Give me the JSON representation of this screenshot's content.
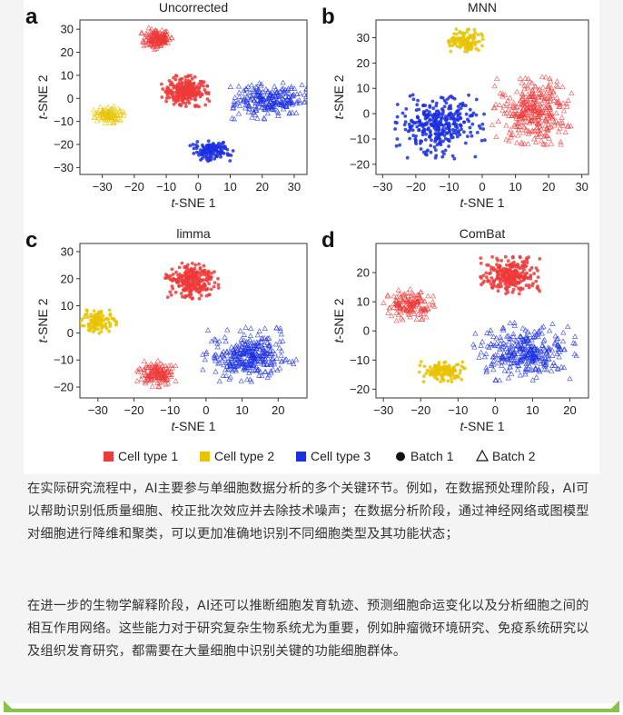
{
  "figure": {
    "legend": [
      {
        "label": "Cell type 1",
        "color": "#ee3a3a",
        "shape": "square"
      },
      {
        "label": "Cell type 2",
        "color": "#e8c300",
        "shape": "square"
      },
      {
        "label": "Cell type 3",
        "color": "#1a2fe0",
        "shape": "square"
      },
      {
        "label": "Batch 1",
        "color": "#111111",
        "shape": "circle"
      },
      {
        "label": "Batch 2",
        "color": "#111111",
        "shape": "triangle"
      }
    ]
  },
  "chart_data": [
    {
      "type": "scatter",
      "letter": "a",
      "title": "Uncorrected",
      "xlabel": "t-SNE 1",
      "ylabel": "t-SNE 2",
      "xlim": [
        -37,
        34
      ],
      "ylim": [
        -33,
        34
      ],
      "xticks": [
        -30,
        -20,
        -10,
        0,
        10,
        20,
        30
      ],
      "yticks": [
        -30,
        -20,
        -10,
        0,
        10,
        20,
        30
      ],
      "clusters": [
        {
          "cell_type": "Cell type 1",
          "batch": "Batch 2",
          "center": [
            -13,
            26
          ],
          "spread": [
            5,
            5
          ],
          "n": 150
        },
        {
          "cell_type": "Cell type 1",
          "batch": "Batch 1",
          "center": [
            -4,
            3
          ],
          "spread": [
            7.5,
            7
          ],
          "n": 260
        },
        {
          "cell_type": "Cell type 2",
          "batch": "Batch 2",
          "center": [
            -28,
            -7
          ],
          "spread": [
            5,
            4
          ],
          "n": 90
        },
        {
          "cell_type": "Cell type 3",
          "batch": "Batch 2",
          "center": [
            22,
            -1
          ],
          "spread": [
            12,
            8
          ],
          "n": 230
        },
        {
          "cell_type": "Cell type 3",
          "batch": "Batch 1",
          "center": [
            4,
            -23
          ],
          "spread": [
            7,
            4.5
          ],
          "n": 120
        }
      ]
    },
    {
      "type": "scatter",
      "letter": "b",
      "title": "MNN",
      "xlabel": "t-SNE 1",
      "ylabel": "t-SNE 2",
      "xlim": [
        -32,
        32
      ],
      "ylim": [
        -24,
        37
      ],
      "xticks": [
        -30,
        -20,
        -10,
        0,
        10,
        20,
        30
      ],
      "yticks": [
        -20,
        -10,
        0,
        10,
        20,
        30
      ],
      "clusters": [
        {
          "cell_type": "Cell type 2",
          "batch": "Batch 1",
          "center": [
            -5,
            29
          ],
          "spread": [
            5.5,
            4.5
          ],
          "n": 110
        },
        {
          "cell_type": "Cell type 1",
          "batch": "Batch 2",
          "center": [
            15,
            1
          ],
          "spread": [
            12,
            14
          ],
          "n": 330
        },
        {
          "cell_type": "Cell type 3",
          "batch": "Batch 1",
          "center": [
            -13,
            -5
          ],
          "spread": [
            14,
            13
          ],
          "n": 330
        }
      ]
    },
    {
      "type": "scatter",
      "letter": "c",
      "title": "limma",
      "xlabel": "t-SNE 1",
      "ylabel": "t-SNE 2",
      "xlim": [
        -35,
        28
      ],
      "ylim": [
        -24,
        33
      ],
      "xticks": [
        -30,
        -20,
        -10,
        0,
        10,
        20
      ],
      "yticks": [
        -20,
        -10,
        0,
        10,
        20,
        30
      ],
      "clusters": [
        {
          "cell_type": "Cell type 1",
          "batch": "Batch 1",
          "center": [
            -4,
            19
          ],
          "spread": [
            7.5,
            7
          ],
          "n": 240
        },
        {
          "cell_type": "Cell type 2",
          "batch": "Batch 1",
          "center": [
            -30,
            4
          ],
          "spread": [
            5.5,
            4.5
          ],
          "n": 100
        },
        {
          "cell_type": "Cell type 1",
          "batch": "Batch 2",
          "center": [
            -14,
            -15
          ],
          "spread": [
            6,
            5
          ],
          "n": 140
        },
        {
          "cell_type": "Cell type 3",
          "batch": "Batch 2",
          "center": [
            12,
            -8
          ],
          "spread": [
            13,
            10
          ],
          "n": 320
        }
      ]
    },
    {
      "type": "scatter",
      "letter": "d",
      "title": "ComBat",
      "xlabel": "t-SNE 1",
      "ylabel": "t-SNE 2",
      "xlim": [
        -32,
        25
      ],
      "ylim": [
        -23,
        30
      ],
      "xticks": [
        -30,
        -20,
        -10,
        0,
        10,
        20
      ],
      "yticks": [
        -20,
        -10,
        0,
        10,
        20
      ],
      "clusters": [
        {
          "cell_type": "Cell type 1",
          "batch": "Batch 1",
          "center": [
            4,
            19
          ],
          "spread": [
            8,
            6.5
          ],
          "n": 250
        },
        {
          "cell_type": "Cell type 1",
          "batch": "Batch 2",
          "center": [
            -23,
            9
          ],
          "spread": [
            7,
            5.5
          ],
          "n": 150
        },
        {
          "cell_type": "Cell type 2",
          "batch": "Batch 1",
          "center": [
            -14,
            -14
          ],
          "spread": [
            6.5,
            3.5
          ],
          "n": 120
        },
        {
          "cell_type": "Cell type 3",
          "batch": "Batch 2",
          "center": [
            8,
            -7
          ],
          "spread": [
            14,
            10
          ],
          "n": 320
        }
      ]
    }
  ],
  "text": {
    "para1": "在实际研究流程中，AI主要参与单细胞数据分析的多个关键环节。例如，在数据预处理阶段，AI可以帮助识别低质量细胞、校正批次效应并去除技术噪声；在数据分析阶段，通过神经网络或图模型对细胞进行降维和聚类，可以更加准确地识别不同细胞类型及其功能状态；",
    "para2": "在进一步的生物学解释阶段，AI还可以推断细胞发育轨迹、预测细胞命运变化以及分析细胞之间的相互作用网络。这些能力对于研究复杂生物系统尤为重要，例如肿瘤微环境研究、免疫系统研究以及组织发育研究，都需要在大量细胞中识别关键的功能细胞群体。"
  }
}
